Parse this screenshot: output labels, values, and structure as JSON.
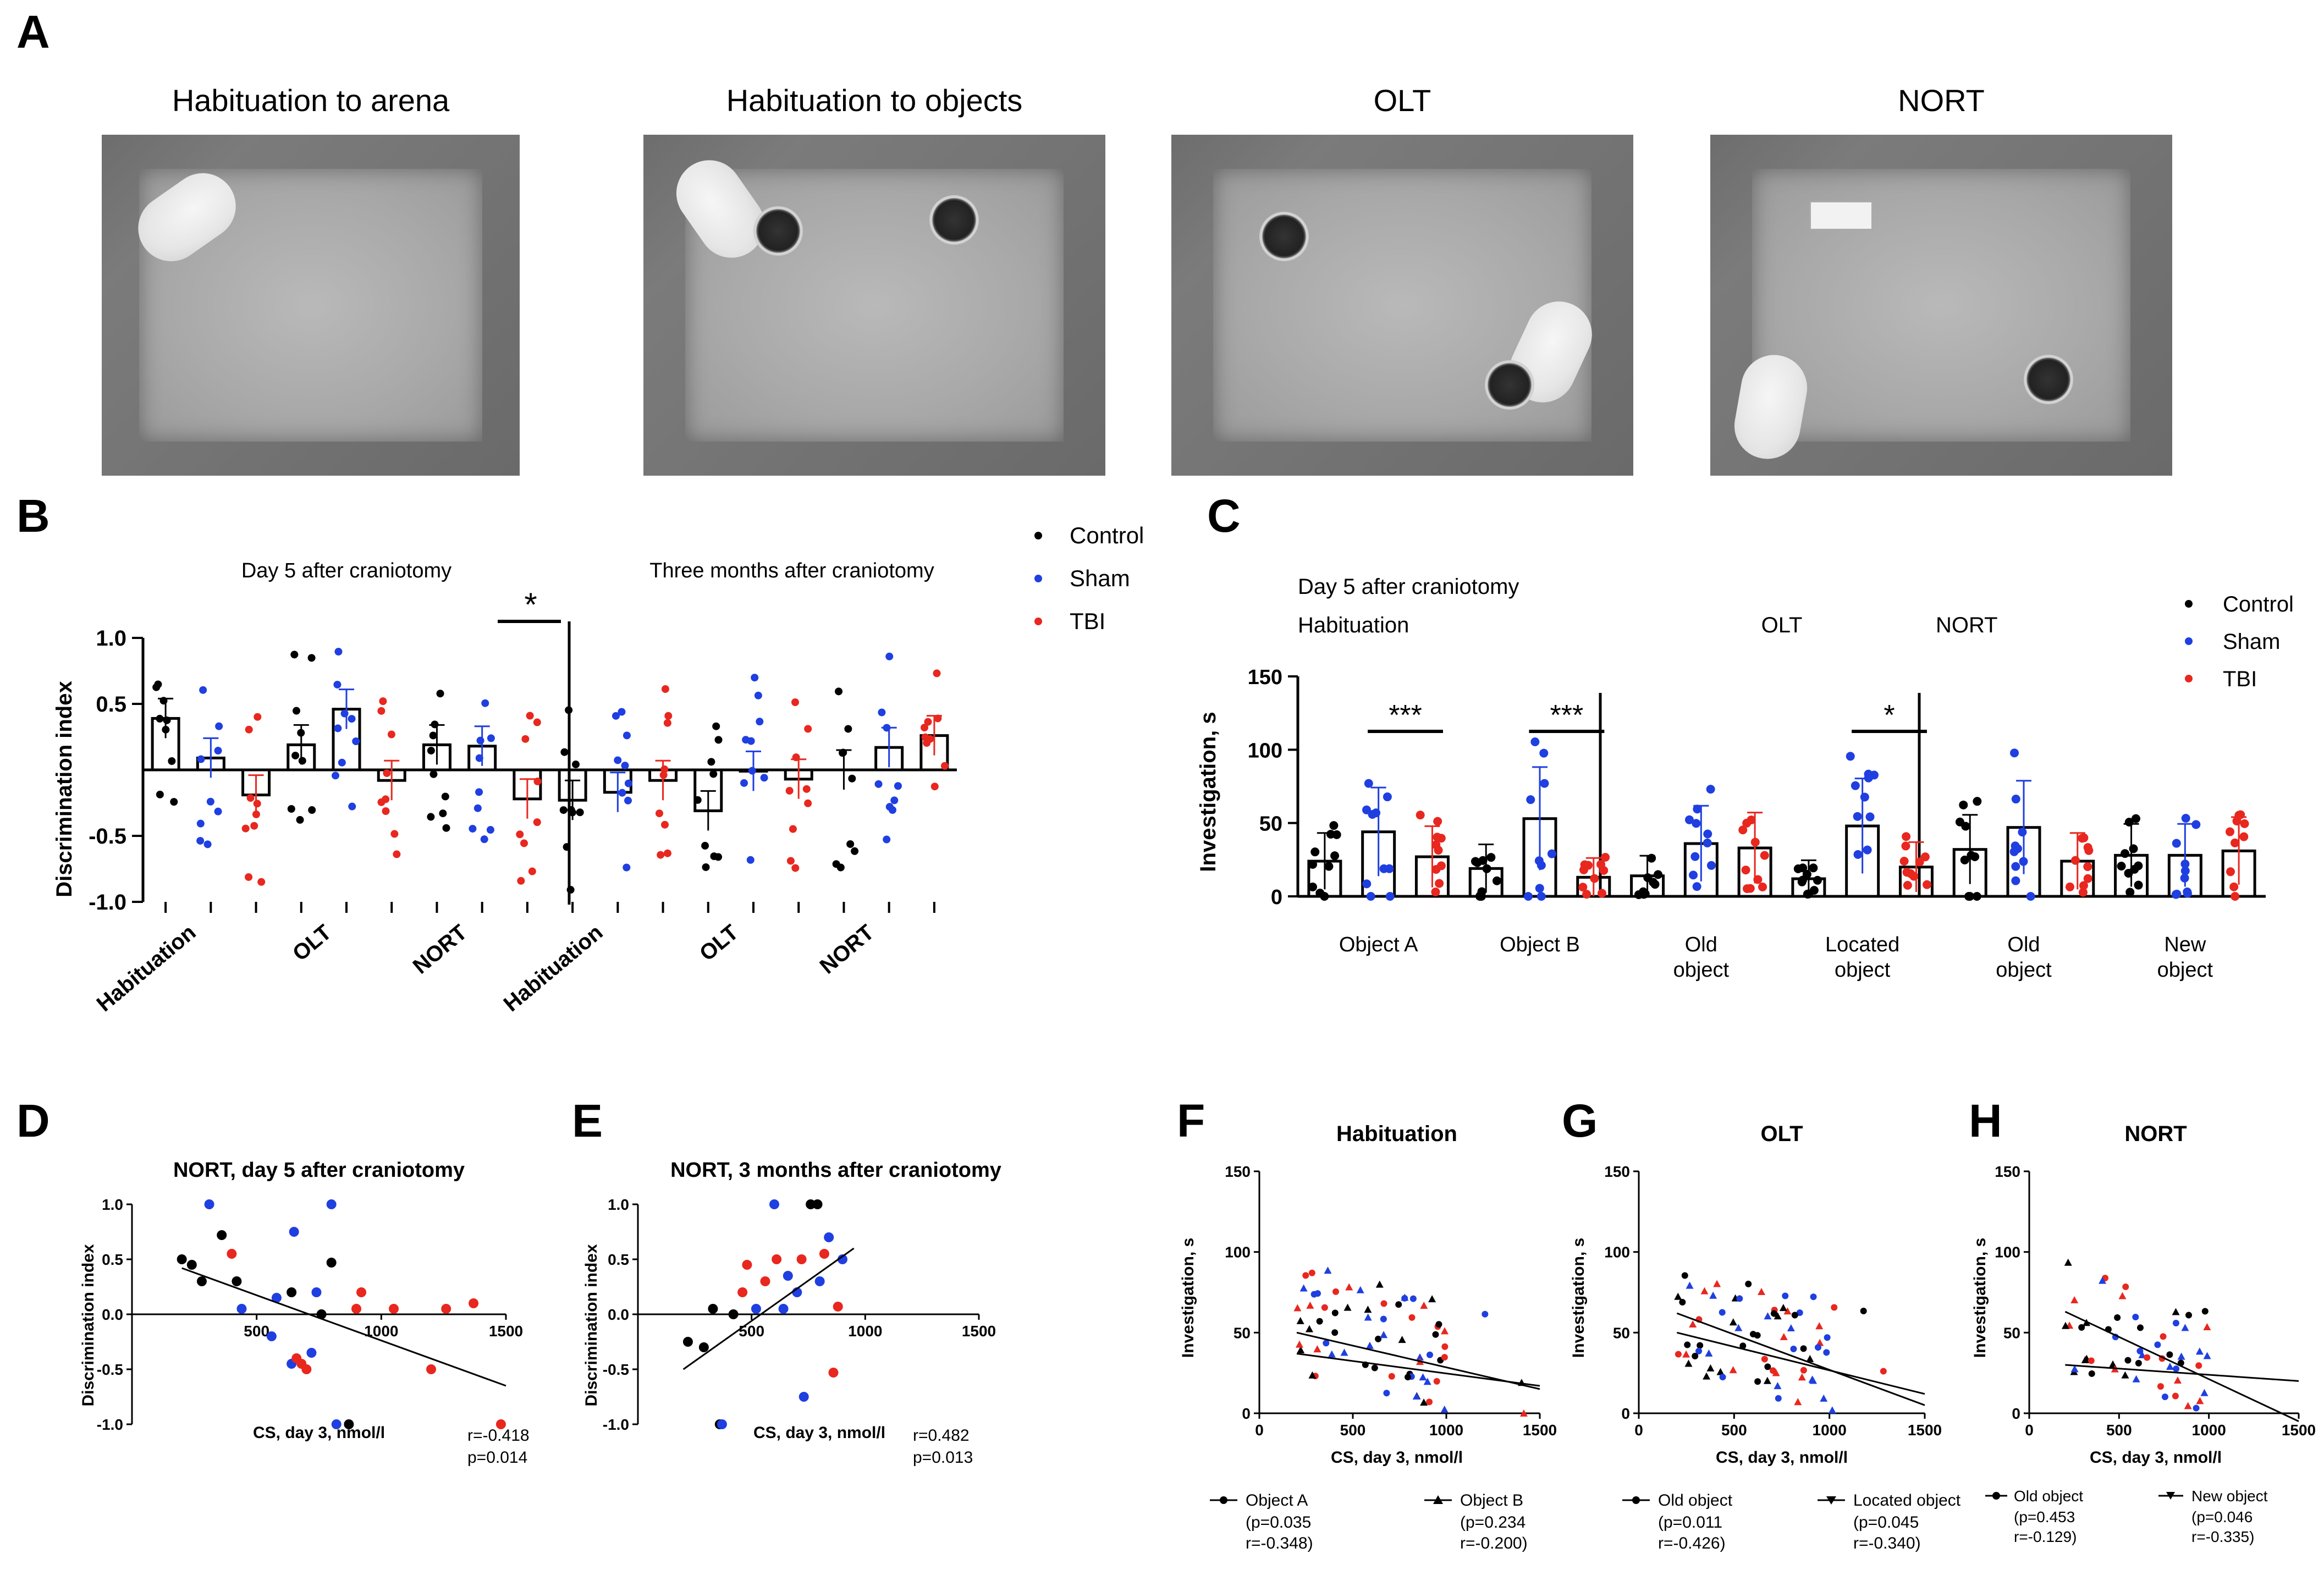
{
  "panels": {
    "A": "A",
    "B": "B",
    "C": "C",
    "D": "D",
    "E": "E",
    "F": "F",
    "G": "G",
    "H": "H"
  },
  "photos": [
    {
      "title": "Habituation to arena"
    },
    {
      "title": "Habituation to objects"
    },
    {
      "title": "OLT"
    },
    {
      "title": "NORT"
    }
  ],
  "legend_groups": {
    "control": "Control",
    "sham": "Sham",
    "tbi": "TBI"
  },
  "colors": {
    "control": "#000000",
    "sham": "#1f3fe0",
    "tbi": "#e8271f"
  },
  "chart_data": [
    {
      "id": "B",
      "type": "bar",
      "ylabel": "Discrimination index",
      "ylim": [
        -1.0,
        1.0
      ],
      "ticks": [
        "1.0",
        "0.5",
        "-0.5",
        "-1.0"
      ],
      "headers": [
        "Day 5 after craniotomy",
        "Three months after craniotomy"
      ],
      "xgroups": [
        "Habituation",
        "OLT",
        "NORT",
        "Habituation",
        "OLT",
        "NORT"
      ],
      "significance": "*",
      "series": [
        {
          "name": "Control",
          "values": [
            0.39,
            0.19,
            0.19,
            -0.23,
            -0.31,
            0.0
          ]
        },
        {
          "name": "Sham",
          "values": [
            0.09,
            0.46,
            0.18,
            -0.17,
            -0.01,
            0.17
          ]
        },
        {
          "name": "TBI",
          "values": [
            -0.19,
            -0.08,
            -0.22,
            -0.08,
            -0.07,
            0.26
          ]
        }
      ]
    },
    {
      "id": "C",
      "type": "bar",
      "ylabel": "Investigation, s",
      "ylim": [
        0,
        150
      ],
      "ticks": [
        "150",
        "100",
        "50",
        "0"
      ],
      "header": "Day 5 after craniotomy",
      "sections": [
        "Habituation",
        "OLT",
        "NORT"
      ],
      "xgroups": [
        "Object A",
        "Object B",
        "Old\nobject",
        "Located\nobject",
        "Old\nobject",
        "New\nobject"
      ],
      "significance": [
        "***",
        "***",
        "*"
      ],
      "series": [
        {
          "name": "Control",
          "values": [
            24,
            19,
            14,
            12,
            32,
            28
          ]
        },
        {
          "name": "Sham",
          "values": [
            44,
            53,
            36,
            48,
            47,
            28
          ]
        },
        {
          "name": "TBI",
          "values": [
            27,
            13,
            33,
            20,
            24,
            31
          ]
        }
      ]
    },
    {
      "id": "D",
      "type": "scatter",
      "title": "NORT, day 5 after craniotomy",
      "xlabel": "CS, day 3, nmol/l",
      "ylabel": "Discrimination index",
      "xlim": [
        0,
        1500
      ],
      "ylim": [
        -1.0,
        1.0
      ],
      "xticks": [
        "500",
        "1000",
        "1500"
      ],
      "yticks": [
        "1.0",
        "0.5",
        "0.0",
        "-0.5",
        "-1.0"
      ],
      "stats": "r=-0.418\np=0.014"
    },
    {
      "id": "E",
      "type": "scatter",
      "title": "NORT, 3 months after craniotomy",
      "xlabel": "CS, day 3, nmol/l",
      "ylabel": "Discrimination index",
      "xlim": [
        0,
        1500
      ],
      "ylim": [
        -1.0,
        1.0
      ],
      "xticks": [
        "500",
        "1000",
        "1500"
      ],
      "yticks": [
        "1.0",
        "0.5",
        "0.0",
        "-0.5",
        "-1.0"
      ],
      "stats": "r=0.482\np=0.013"
    },
    {
      "id": "F",
      "type": "scatter",
      "title": "Habituation",
      "xlabel": "CS, day 3, nmol/l",
      "ylabel": "Investigation, s",
      "xlim": [
        0,
        1500
      ],
      "ylim": [
        0,
        150
      ],
      "xticks": [
        "0",
        "500",
        "1000",
        "1500"
      ],
      "yticks": [
        "150",
        "100",
        "50",
        "0"
      ],
      "legend": [
        {
          "name": "Object A",
          "stats": "(p=0.035\nr=-0.348)"
        },
        {
          "name": "Object B",
          "stats": "(p=0.234\nr=-0.200)"
        }
      ]
    },
    {
      "id": "G",
      "type": "scatter",
      "title": "OLT",
      "xlabel": "CS, day 3, nmol/l",
      "ylabel": "Investigation, s",
      "xlim": [
        0,
        1500
      ],
      "ylim": [
        0,
        150
      ],
      "xticks": [
        "0",
        "500",
        "1000",
        "1500"
      ],
      "yticks": [
        "150",
        "100",
        "50",
        "0"
      ],
      "legend": [
        {
          "name": "Old object",
          "stats": "(p=0.011\nr=-0.426)"
        },
        {
          "name": "Located object",
          "stats": "(p=0.045\nr=-0.340)"
        }
      ]
    },
    {
      "id": "H",
      "type": "scatter",
      "title": "NORT",
      "xlabel": "CS, day 3, nmol/l",
      "ylabel": "Investigation, s",
      "xlim": [
        0,
        1500
      ],
      "ylim": [
        0,
        150
      ],
      "xticks": [
        "0",
        "500",
        "1000",
        "1500"
      ],
      "yticks": [
        "150",
        "100",
        "50",
        "0"
      ],
      "legend": [
        {
          "name": "Old object",
          "stats": "(p=0.453\nr=-0.129)"
        },
        {
          "name": "New object",
          "stats": "(p=0.046\nr=-0.335)"
        }
      ]
    }
  ]
}
